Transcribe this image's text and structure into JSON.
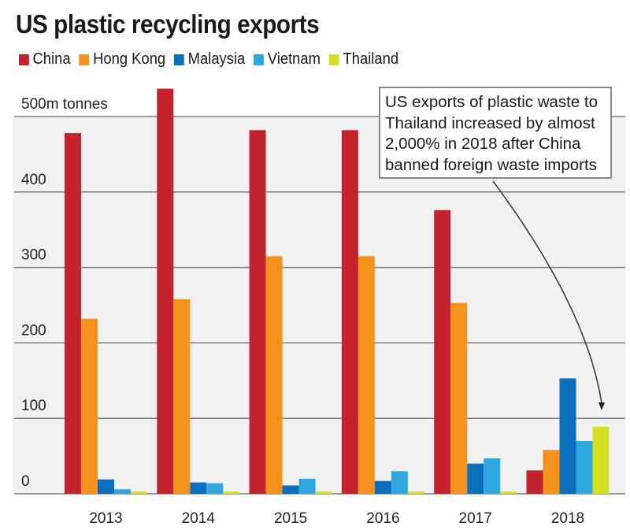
{
  "chart_data": {
    "type": "bar",
    "title": "US plastic recycling exports",
    "ylabel": "m tonnes",
    "xlabel": "",
    "ylim": [
      0,
      500
    ],
    "yticks": [
      0,
      100,
      200,
      300,
      400,
      500
    ],
    "ytick_labels": [
      "0",
      "100",
      "200",
      "300",
      "400",
      "500m tonnes"
    ],
    "categories": [
      "2013",
      "2014",
      "2015",
      "2016",
      "2017",
      "2018"
    ],
    "grid": true,
    "legend_position": "top-left",
    "series": [
      {
        "name": "China",
        "color": "#c4232d",
        "values": [
          478,
          537,
          482,
          482,
          376,
          31
        ]
      },
      {
        "name": "Hong Kong",
        "color": "#f5921e",
        "values": [
          232,
          258,
          315,
          315,
          253,
          58
        ]
      },
      {
        "name": "Malaysia",
        "color": "#0a6fbd",
        "values": [
          19,
          15,
          11,
          17,
          40,
          153
        ]
      },
      {
        "name": "Vietnam",
        "color": "#2fa8e0",
        "values": [
          6,
          14,
          20,
          30,
          47,
          70
        ]
      },
      {
        "name": "Thailand",
        "color": "#d7df23",
        "values": [
          3,
          3,
          3,
          3,
          3,
          89
        ]
      }
    ],
    "annotation": {
      "lines": [
        "US exports of plastic waste to",
        "Thailand increased by almost",
        "2,000% in 2018 after China",
        "banned foreign waste imports"
      ],
      "points_to": {
        "series": "Thailand",
        "category": "2018"
      }
    }
  }
}
